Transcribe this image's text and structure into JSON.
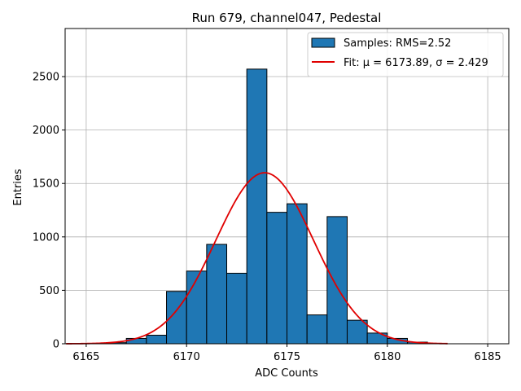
{
  "chart_data": {
    "type": "bar",
    "title": "Run 679, channel047, Pedestal",
    "xlabel": "ADC Counts",
    "ylabel": "Entries",
    "xlim": [
      6163.95,
      6186.05
    ],
    "ylim": [
      0,
      2950
    ],
    "xticks": [
      6165,
      6170,
      6175,
      6180,
      6185
    ],
    "yticks": [
      0,
      500,
      1000,
      1500,
      2000,
      2500
    ],
    "grid": true,
    "legend_position": "top-right",
    "bin_edges": [
      6164,
      6165,
      6166,
      6167,
      6168,
      6169,
      6170,
      6171,
      6172,
      6173,
      6174,
      6175,
      6176,
      6177,
      6178,
      6179,
      6180,
      6181,
      6182,
      6183
    ],
    "counts": [
      0,
      0,
      10,
      50,
      80,
      490,
      680,
      930,
      660,
      2570,
      1230,
      1310,
      270,
      1190,
      220,
      100,
      50,
      15,
      0
    ],
    "bar_color": "#1f77b4",
    "fit": {
      "mu": 6173.89,
      "sigma": 2.429,
      "amplitude": 1600,
      "x_range": [
        6164,
        6183
      ],
      "color": "#e00000"
    },
    "legend": [
      {
        "label": "Samples: RMS=2.52",
        "kind": "patch",
        "color": "#1f77b4"
      },
      {
        "label": "Fit: μ = 6173.89, σ = 2.429",
        "kind": "line",
        "color": "#e00000"
      }
    ]
  }
}
